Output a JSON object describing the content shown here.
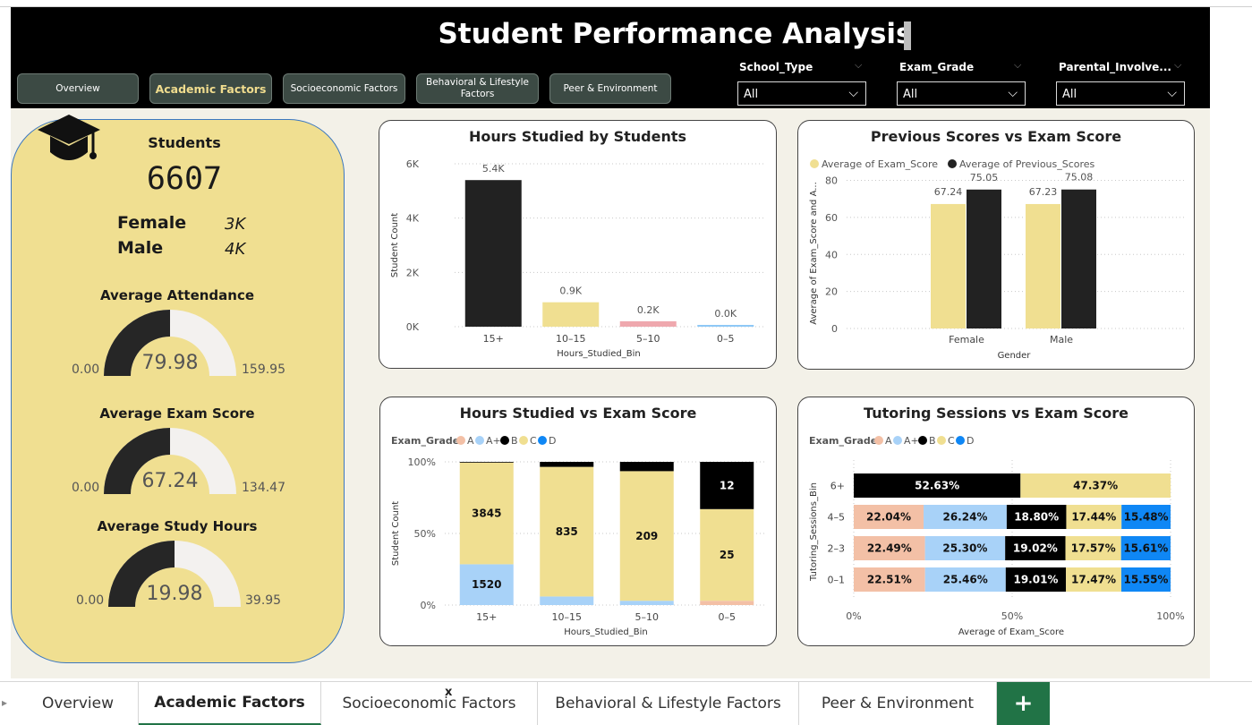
{
  "dashboard_title": "Student Performance Analysis",
  "nav": {
    "overview": "Overview",
    "academic": "Academic Factors",
    "socio": "Socioeconomic Factors",
    "behavioral": "Behavioral & Lifestyle Factors",
    "peer": "Peer & Environment"
  },
  "slicers": [
    {
      "label": "School_Type",
      "value": "All"
    },
    {
      "label": "Exam_Grade",
      "value": "All"
    },
    {
      "label": "Parental_Involve...",
      "value": "All"
    }
  ],
  "kpis": {
    "students_label": "Students",
    "students_value": "6607",
    "female_label": "Female",
    "female_value": "3K",
    "male_label": "Male",
    "male_value": "4K",
    "attendance": {
      "label": "Average Attendance",
      "value": 79.98,
      "value_text": "79.98",
      "min": "0.00",
      "max": "159.95"
    },
    "exam": {
      "label": "Average Exam Score",
      "value": 67.24,
      "value_text": "67.24",
      "min": "0.00",
      "max": "134.47"
    },
    "study": {
      "label": "Average Study Hours",
      "value": 19.98,
      "value_text": "19.98",
      "min": "0.00",
      "max": "39.95"
    }
  },
  "colors": {
    "gold": "#f0df91",
    "black": "#222222",
    "grade_A": "#f3c0a6",
    "grade_A_plus": "#a8d2f8",
    "grade_B": "#000000",
    "grade_C": "#f0df91",
    "grade_D": "#0f87f5",
    "pink_bar": "#efa8ae",
    "blue_bar": "#8ec8f6"
  },
  "chart_data": [
    {
      "id": "hours_bar",
      "type": "bar",
      "title": "Hours Studied by Students",
      "xlabel": "Hours_Studied_Bin",
      "ylabel": "Student Count",
      "categories": [
        "15+",
        "10–15",
        "5–10",
        "0–5"
      ],
      "values": [
        5400,
        900,
        200,
        30
      ],
      "data_labels": [
        "5.4K",
        "0.9K",
        "0.2K",
        "0.0K"
      ],
      "yticks": [
        "0K",
        "2K",
        "4K",
        "6K"
      ],
      "ylim": [
        0,
        6000
      ]
    },
    {
      "id": "prev_scores",
      "type": "bar",
      "title": "Previous Scores vs Exam Score",
      "xlabel": "Gender",
      "ylabel": "Average of Exam_Score and A...",
      "categories": [
        "Female",
        "Male"
      ],
      "series": [
        {
          "name": "Average of Exam_Score",
          "values": [
            67.24,
            67.23
          ]
        },
        {
          "name": "Average of Previous_Scores",
          "values": [
            75.05,
            75.08
          ]
        }
      ],
      "yticks": [
        "0",
        "20",
        "40",
        "60",
        "80"
      ],
      "ylim": [
        0,
        88
      ]
    },
    {
      "id": "hours_vs_exam",
      "type": "bar",
      "title": "Hours Studied vs Exam Score",
      "xlabel": "Hours_Studied_Bin",
      "ylabel": "Student Count",
      "legend_title": "Exam_Grade",
      "legend": [
        "A",
        "A+",
        "B",
        "C",
        "D"
      ],
      "categories": [
        "15+",
        "10–15",
        "5–10",
        "0–5"
      ],
      "segments": [
        {
          "cat": "15+",
          "parts": [
            {
              "grade": "A+",
              "pct": 0.285,
              "label": "1520"
            },
            {
              "grade": "C",
              "pct": 0.71,
              "label": "3845"
            },
            {
              "grade": "B",
              "pct": 0.005,
              "label": ""
            }
          ]
        },
        {
          "cat": "10–15",
          "parts": [
            {
              "grade": "A+",
              "pct": 0.06,
              "label": ""
            },
            {
              "grade": "C",
              "pct": 0.905,
              "label": "835"
            },
            {
              "grade": "B",
              "pct": 0.035,
              "label": ""
            }
          ]
        },
        {
          "cat": "5–10",
          "parts": [
            {
              "grade": "A+",
              "pct": 0.03,
              "label": ""
            },
            {
              "grade": "C",
              "pct": 0.905,
              "label": "209"
            },
            {
              "grade": "B",
              "pct": 0.065,
              "label": ""
            }
          ]
        },
        {
          "cat": "0–5",
          "parts": [
            {
              "grade": "A",
              "pct": 0.03,
              "label": ""
            },
            {
              "grade": "C",
              "pct": 0.64,
              "label": "25"
            },
            {
              "grade": "B",
              "pct": 0.33,
              "label": "12"
            }
          ]
        }
      ],
      "yticks": [
        "0%",
        "50%",
        "100%"
      ]
    },
    {
      "id": "tutoring",
      "type": "bar",
      "title": "Tutoring Sessions vs Exam Score",
      "xlabel": "Average of Exam_Score",
      "ylabel": "Tutoring_Sessions_Bin",
      "legend_title": "Exam_Grade",
      "legend": [
        "A",
        "A+",
        "B",
        "C",
        "D"
      ],
      "rows": [
        {
          "cat": "6+",
          "parts": [
            {
              "grade": "B",
              "pct": 52.63,
              "label": "52.63%"
            },
            {
              "grade": "C",
              "pct": 47.37,
              "label": "47.37%"
            }
          ]
        },
        {
          "cat": "4–5",
          "parts": [
            {
              "grade": "A",
              "pct": 22.04,
              "label": "22.04%"
            },
            {
              "grade": "A+",
              "pct": 26.24,
              "label": "26.24%"
            },
            {
              "grade": "B",
              "pct": 18.8,
              "label": "18.80%"
            },
            {
              "grade": "C",
              "pct": 17.44,
              "label": "17.44%"
            },
            {
              "grade": "D",
              "pct": 15.48,
              "label": "15.48%"
            }
          ]
        },
        {
          "cat": "2–3",
          "parts": [
            {
              "grade": "A",
              "pct": 22.49,
              "label": "22.49%"
            },
            {
              "grade": "A+",
              "pct": 25.3,
              "label": "25.30%"
            },
            {
              "grade": "B",
              "pct": 19.02,
              "label": "19.02%"
            },
            {
              "grade": "C",
              "pct": 17.57,
              "label": "17.57%"
            },
            {
              "grade": "D",
              "pct": 15.61,
              "label": "15.61%"
            }
          ]
        },
        {
          "cat": "0–1",
          "parts": [
            {
              "grade": "A",
              "pct": 22.51,
              "label": "22.51%"
            },
            {
              "grade": "A+",
              "pct": 25.46,
              "label": "25.46%"
            },
            {
              "grade": "B",
              "pct": 19.01,
              "label": "19.01%"
            },
            {
              "grade": "C",
              "pct": 17.47,
              "label": "17.47%"
            },
            {
              "grade": "D",
              "pct": 15.55,
              "label": "15.55%"
            }
          ]
        }
      ],
      "xticks": [
        "0%",
        "50%",
        "100%"
      ]
    }
  ],
  "tabs": {
    "overview": "Overview",
    "academic": "Academic Factors",
    "close_mark": "x",
    "socio": "Socioeconomic Factors",
    "behavioral": "Behavioral & Lifestyle Factors",
    "peer": "Peer & Environment",
    "add": "+",
    "scroll_left": "▸"
  }
}
